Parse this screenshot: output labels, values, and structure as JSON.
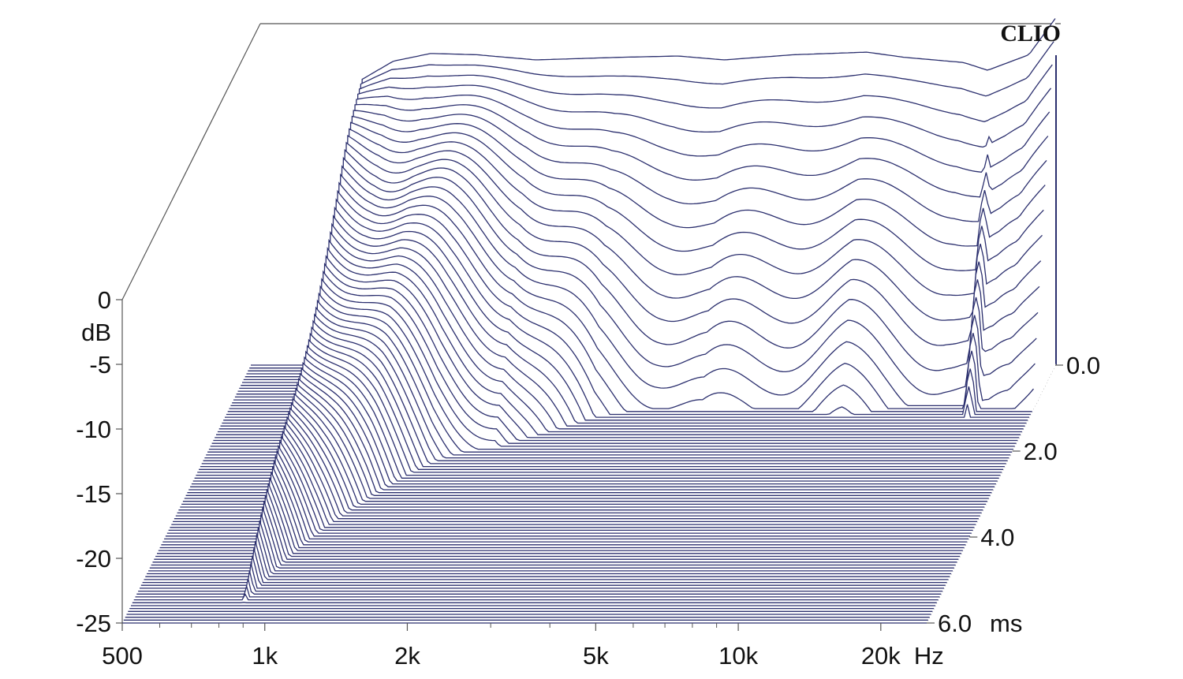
{
  "chart_data": {
    "type": "waterfall",
    "brand": "CLIO",
    "colors": {
      "line": "#2b2f6e",
      "background": "#ffffff",
      "axis": "#555555",
      "text": "#111111"
    },
    "x_axis": {
      "scale": "log",
      "range": [
        500,
        25000
      ],
      "unit": "Hz",
      "tick_labels": [
        {
          "value": 500,
          "label": "500"
        },
        {
          "value": 1000,
          "label": "1k"
        },
        {
          "value": 2000,
          "label": "2k"
        },
        {
          "value": 5000,
          "label": "5k"
        },
        {
          "value": 10000,
          "label": "10k"
        },
        {
          "value": 20000,
          "label": "20k"
        }
      ],
      "minor_ticks": [
        600,
        700,
        800,
        900,
        3000,
        4000,
        6000,
        7000,
        8000,
        9000
      ]
    },
    "y_axis": {
      "range": [
        -25,
        0
      ],
      "unit": "dB",
      "tick_labels": [
        {
          "value": 0,
          "label": "0"
        },
        {
          "value": -5,
          "label": "-5"
        },
        {
          "value": -10,
          "label": "-10"
        },
        {
          "value": -15,
          "label": "-15"
        },
        {
          "value": -20,
          "label": "-20"
        },
        {
          "value": -25,
          "label": "-25"
        }
      ]
    },
    "z_axis": {
      "range": [
        0.0,
        6.0
      ],
      "unit": "ms",
      "tick_labels": [
        {
          "value": 0.0,
          "label": "0.0"
        },
        {
          "value": 2.0,
          "label": "2.0"
        },
        {
          "value": 4.0,
          "label": "4.0"
        },
        {
          "value": 6.0,
          "label": "6.0"
        }
      ]
    },
    "slice_count": 90,
    "active_band_hz": [
      850,
      25000
    ],
    "base_response_db": [
      {
        "f": 850,
        "db": -3.0
      },
      {
        "f": 1000,
        "db": -1.5
      },
      {
        "f": 1200,
        "db": -0.9
      },
      {
        "f": 1500,
        "db": -1.0
      },
      {
        "f": 2000,
        "db": -1.4
      },
      {
        "f": 3000,
        "db": -1.2
      },
      {
        "f": 4000,
        "db": -1.1
      },
      {
        "f": 5000,
        "db": -1.4
      },
      {
        "f": 7000,
        "db": -1.0
      },
      {
        "f": 10000,
        "db": -0.8
      },
      {
        "f": 12000,
        "db": -1.2
      },
      {
        "f": 16000,
        "db": -1.6
      },
      {
        "f": 18000,
        "db": -2.2
      },
      {
        "f": 22000,
        "db": -1.0
      },
      {
        "f": 25000,
        "db": 1.8
      }
    ],
    "decay_db_per_ms": [
      {
        "f": 850,
        "rate": 4
      },
      {
        "f": 1000,
        "rate": 6
      },
      {
        "f": 1500,
        "rate": 10
      },
      {
        "f": 2000,
        "rate": 12
      },
      {
        "f": 3000,
        "rate": 20
      },
      {
        "f": 5000,
        "rate": 24
      },
      {
        "f": 10000,
        "rate": 22
      },
      {
        "f": 20000,
        "rate": 26
      },
      {
        "f": 25000,
        "rate": 24
      }
    ],
    "resonances": [
      {
        "f": 1480,
        "db": -6.5,
        "decay_ms": 0.7
      },
      {
        "f": 3000,
        "db": -5.0,
        "decay_ms": 0.35
      },
      {
        "f": 4200,
        "db": -5.8,
        "decay_ms": 0.3
      },
      {
        "f": 7300,
        "db": -6.2,
        "decay_ms": 0.25
      },
      {
        "f": 10800,
        "db": -3.0,
        "decay_ms": 0.25
      },
      {
        "f": 18500,
        "db": -3.2,
        "decay_ms": 0.35
      }
    ]
  }
}
